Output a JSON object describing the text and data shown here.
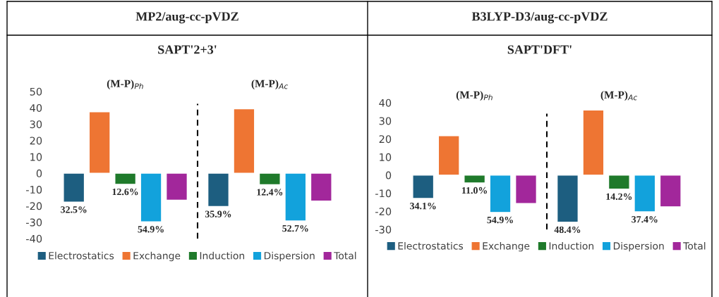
{
  "chart_data": [
    {
      "type": "bar",
      "title": "MP2/aug-cc-pVDZ",
      "subtitle": "SAPT'2+3'",
      "categories": [
        "(M-P)$_{Ph}$",
        "(M-P)$_{Ac}$"
      ],
      "ylim": [
        -40,
        50
      ],
      "yticks": [
        -40,
        -30,
        -20,
        -10,
        0,
        10,
        20,
        30,
        40,
        50
      ],
      "grid": false,
      "legend": "bottom",
      "series": [
        {
          "name": "Electrostatics",
          "color": "#1d5e80",
          "values": [
            -17.7,
            -20.4
          ]
        },
        {
          "name": "Exchange",
          "color": "#ee7533",
          "values": [
            37.6,
            39.4
          ]
        },
        {
          "name": "Induction",
          "color": "#1f7a2b",
          "values": [
            -6.8,
            -7.0
          ]
        },
        {
          "name": "Dispersion",
          "color": "#12a2dc",
          "values": [
            -29.7,
            -29.2
          ]
        },
        {
          "name": "Total",
          "color": "#a2279b",
          "values": [
            -16.5,
            -17.0
          ]
        }
      ],
      "annotations": [
        "32.5%",
        "12.6%",
        "54.9%",
        "35.9%",
        "12.4%",
        "52.7%"
      ]
    },
    {
      "type": "bar",
      "title": "B3LYP-D3/aug-cc-pVDZ",
      "subtitle": "SAPT'DFT'",
      "categories": [
        "(M-P)$_{Ph}$",
        "(M-P)$_{Ac}$"
      ],
      "ylim": [
        -30,
        40
      ],
      "yticks": [
        -30,
        -20,
        -10,
        0,
        10,
        20,
        30,
        40
      ],
      "grid": false,
      "legend": "bottom",
      "series": [
        {
          "name": "Electrostatics",
          "color": "#1d5e80",
          "values": [
            -12.9,
            -26.0
          ]
        },
        {
          "name": "Exchange",
          "color": "#ee7533",
          "values": [
            21.8,
            36.0
          ]
        },
        {
          "name": "Induction",
          "color": "#1f7a2b",
          "values": [
            -4.3,
            -7.7
          ]
        },
        {
          "name": "Dispersion",
          "color": "#12a2dc",
          "values": [
            -20.6,
            -20.3
          ]
        },
        {
          "name": "Total",
          "color": "#a2279b",
          "values": [
            -15.7,
            -17.5
          ]
        }
      ],
      "annotations": [
        "34.1%",
        "11.0%",
        "54.9%",
        "48.4%",
        "14.2%",
        "37.4%"
      ]
    }
  ]
}
